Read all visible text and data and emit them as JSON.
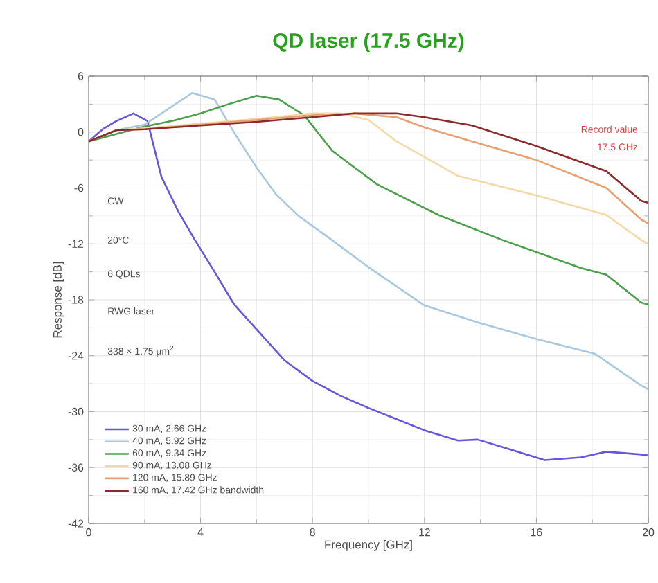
{
  "chart_data": {
    "type": "line",
    "title": "QD laser (17.5 GHz)",
    "xlabel": "Frequency [GHz]",
    "ylabel": "Response [dB]",
    "xlim": [
      0,
      20
    ],
    "ylim": [
      -42,
      6
    ],
    "xticks": [
      0,
      4,
      8,
      12,
      16,
      20
    ],
    "yticks": [
      -42,
      -36,
      -30,
      -24,
      -18,
      -12,
      -6,
      0,
      6
    ],
    "grid": true,
    "legend": "bottom left",
    "line_style": "solid",
    "marker": "none",
    "annotations": [
      "CW",
      "20°C",
      "6 QDLs",
      "RWG laser",
      "338 × 1.75 µm$^{2}$",
      "Record value",
      "17.5 GHz"
    ],
    "series": [
      {
        "name": "30 mA, 2.66 GHz",
        "color": "#6655dd",
        "x": [
          0,
          0.5,
          1,
          1.6,
          2.1,
          2.6,
          3.2,
          3.8,
          4.5,
          5.2,
          6.1,
          7,
          8,
          9,
          10,
          11,
          12,
          13.2,
          13.9,
          15,
          16.3,
          17.6,
          18.5,
          19.75,
          20
        ],
        "values": [
          -1,
          0.3,
          1.2,
          2,
          1.2,
          -4.8,
          -8.5,
          -11.6,
          -15,
          -18.5,
          -21.5,
          -24.5,
          -26.7,
          -28.3,
          -29.6,
          -30.8,
          -32,
          -33.1,
          -33,
          -34,
          -35.2,
          -34.9,
          -34.3,
          -34.6,
          -34.7
        ]
      },
      {
        "name": "40 mA, 5.92 GHz",
        "color": "#a8c8e0",
        "x": [
          0,
          1,
          2,
          3,
          3.7,
          4.5,
          5.25,
          6,
          6.7,
          7.5,
          8.7,
          10,
          12,
          14,
          16,
          18.1,
          19.75,
          20
        ],
        "values": [
          -1,
          0.2,
          0.8,
          2.8,
          4.2,
          3.5,
          -0.3,
          -3.8,
          -6.7,
          -9,
          -11.6,
          -14.5,
          -18.6,
          -20.5,
          -22.2,
          -23.8,
          -27.2,
          -27.6
        ]
      },
      {
        "name": "60 mA, 9.34 GHz",
        "color": "#4aa04a",
        "x": [
          0,
          2,
          3,
          4,
          5,
          6,
          6.8,
          7.7,
          8.7,
          10.3,
          12.5,
          14.8,
          17.6,
          18.5,
          19.75,
          20
        ],
        "values": [
          -1,
          0.6,
          1.2,
          2,
          3,
          3.9,
          3.5,
          1.8,
          -2,
          -5.6,
          -8.9,
          -11.6,
          -14.6,
          -15.3,
          -18.3,
          -18.5
        ]
      },
      {
        "name": "90 mA, 13.08 GHz",
        "color": "#f3d9a8",
        "x": [
          0,
          1,
          2,
          4,
          6,
          8,
          9,
          10,
          11,
          13.2,
          16,
          18.5,
          19.75,
          20
        ],
        "values": [
          -1,
          0.2,
          0.4,
          0.9,
          1.4,
          2,
          2,
          1.3,
          -1,
          -4.7,
          -6.8,
          -8.9,
          -11.6,
          -12
        ]
      },
      {
        "name": "120 mA, 15.89 GHz",
        "color": "#e8a070",
        "x": [
          0,
          1,
          2,
          4,
          6,
          8,
          9.5,
          11,
          12,
          13.7,
          16,
          18.5,
          19.75,
          20
        ],
        "values": [
          -1,
          0.2,
          0.3,
          0.8,
          1.3,
          1.8,
          2,
          1.6,
          0.5,
          -1,
          -3,
          -6,
          -9.4,
          -9.8
        ]
      },
      {
        "name": "160 mA, 17.42 GHz bandwidth",
        "color": "#8b2a2a",
        "x": [
          0,
          1,
          2,
          4,
          6,
          8,
          9.5,
          11,
          12,
          13.7,
          16,
          18.5,
          19.75,
          20
        ],
        "values": [
          -1,
          0.2,
          0.3,
          0.7,
          1.1,
          1.6,
          2,
          2,
          1.6,
          0.7,
          -1.5,
          -4.2,
          -7.4,
          -7.6
        ]
      }
    ]
  }
}
